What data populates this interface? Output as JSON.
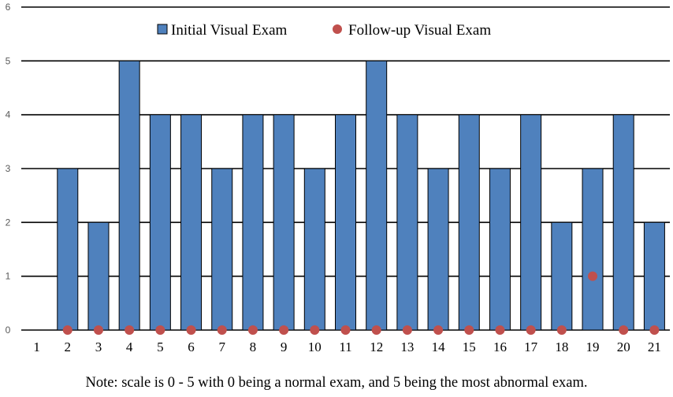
{
  "chart_data": {
    "type": "bar",
    "categories": [
      "1",
      "2",
      "3",
      "4",
      "5",
      "6",
      "7",
      "8",
      "9",
      "10",
      "11",
      "12",
      "13",
      "14",
      "15",
      "16",
      "17",
      "18",
      "19",
      "20",
      "21"
    ],
    "series": [
      {
        "name": "Initial Visual Exam",
        "kind": "bar",
        "color": "#4f81bd",
        "values": [
          null,
          3,
          2,
          5,
          4,
          4,
          3,
          4,
          4,
          3,
          4,
          5,
          4,
          3,
          4,
          3,
          4,
          2,
          3,
          4,
          2
        ]
      },
      {
        "name": "Follow-up Visual Exam",
        "kind": "marker",
        "color": "#c0504d",
        "values": [
          null,
          0,
          0,
          0,
          0,
          0,
          0,
          0,
          0,
          0,
          0,
          0,
          0,
          0,
          0,
          0,
          0,
          0,
          1,
          0,
          0
        ]
      }
    ],
    "yticks": [
      "0",
      "1",
      "2",
      "3",
      "4",
      "5",
      "6"
    ],
    "ylim": [
      0,
      6
    ],
    "grid": true,
    "legend_position": "top-center",
    "note": "Note: scale is 0 - 5 with 0 being a normal exam, and 5 being the most abnormal exam."
  }
}
